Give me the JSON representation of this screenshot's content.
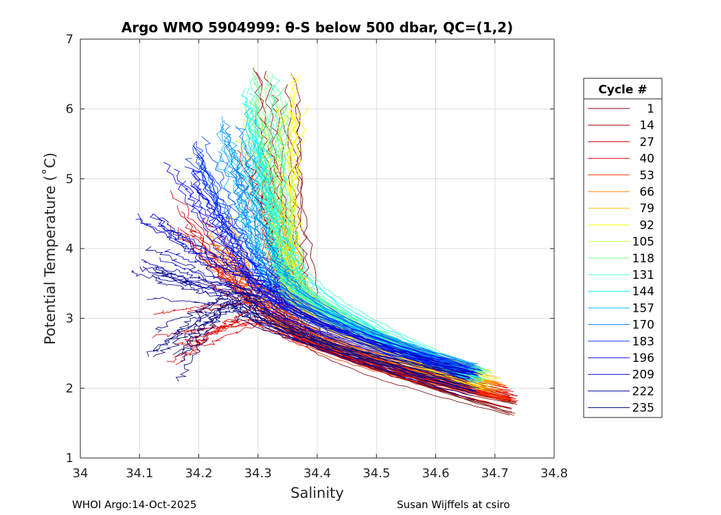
{
  "chart_data": {
    "type": "line",
    "title": "Argo WMO 5904999: θ-S below 500 dbar,  QC=(1,2)",
    "xlabel": "Salinity",
    "ylabel": "Potential Temperature (˚C)",
    "xlim": [
      34.0,
      34.8
    ],
    "ylim": [
      1,
      7
    ],
    "xticks": [
      34.0,
      34.1,
      34.2,
      34.3,
      34.4,
      34.5,
      34.6,
      34.7,
      34.8
    ],
    "xtick_labels": [
      "34",
      "34.1",
      "34.2",
      "34.3",
      "34.4",
      "34.5",
      "34.6",
      "34.7",
      "34.8"
    ],
    "yticks": [
      1,
      2,
      3,
      4,
      5,
      6,
      7
    ],
    "ytick_labels": [
      "1",
      "2",
      "3",
      "4",
      "5",
      "6",
      "7"
    ],
    "grid": true,
    "legend_title": "Cycle #",
    "legend_position": "right-outside",
    "series": [
      {
        "name": "1",
        "color": "#800000",
        "s_deep": 34.745,
        "t_deep": 1.6,
        "s_mid": 34.38,
        "t_mid": 2.9,
        "s_top": 34.33,
        "t_top": 6.6
      },
      {
        "name": "14",
        "color": "#a60000",
        "s_deep": 34.74,
        "t_deep": 1.7,
        "s_mid": 34.36,
        "t_mid": 2.95,
        "s_top": 34.3,
        "t_top": 5.8
      },
      {
        "name": "27",
        "color": "#cc0000",
        "s_deep": 34.74,
        "t_deep": 1.75,
        "s_mid": 34.33,
        "t_mid": 3.0,
        "s_top": 34.18,
        "t_top": 5.0
      },
      {
        "name": "40",
        "color": "#e60000",
        "s_deep": 34.735,
        "t_deep": 1.8,
        "s_mid": 34.32,
        "t_mid": 3.1,
        "s_top": 34.16,
        "t_top": 3.1
      },
      {
        "name": "53",
        "color": "#ff3300",
        "s_deep": 34.73,
        "t_deep": 1.8,
        "s_mid": 34.33,
        "t_mid": 3.05,
        "s_top": 34.22,
        "t_top": 4.2
      },
      {
        "name": "66",
        "color": "#ff8000",
        "s_deep": 34.72,
        "t_deep": 1.85,
        "s_mid": 34.34,
        "t_mid": 3.2,
        "s_top": 34.24,
        "t_top": 4.5
      },
      {
        "name": "79",
        "color": "#ffbf00",
        "s_deep": 34.71,
        "t_deep": 1.9,
        "s_mid": 34.37,
        "t_mid": 3.3,
        "s_top": 34.33,
        "t_top": 4.8
      },
      {
        "name": "92",
        "color": "#ffff00",
        "s_deep": 34.7,
        "t_deep": 1.95,
        "s_mid": 34.36,
        "t_mid": 3.5,
        "s_top": 34.36,
        "t_top": 6.6
      },
      {
        "name": "105",
        "color": "#bfff40",
        "s_deep": 34.7,
        "t_deep": 2.0,
        "s_mid": 34.36,
        "t_mid": 3.6,
        "s_top": 34.3,
        "t_top": 6.2
      },
      {
        "name": "118",
        "color": "#80ff80",
        "s_deep": 34.69,
        "t_deep": 2.0,
        "s_mid": 34.35,
        "t_mid": 3.7,
        "s_top": 34.32,
        "t_top": 6.6
      },
      {
        "name": "131",
        "color": "#40ffbf",
        "s_deep": 34.69,
        "t_deep": 2.05,
        "s_mid": 34.35,
        "t_mid": 3.8,
        "s_top": 34.31,
        "t_top": 6.5
      },
      {
        "name": "144",
        "color": "#00ffff",
        "s_deep": 34.68,
        "t_deep": 2.05,
        "s_mid": 34.34,
        "t_mid": 3.8,
        "s_top": 34.28,
        "t_top": 6.3
      },
      {
        "name": "157",
        "color": "#00bfff",
        "s_deep": 34.68,
        "t_deep": 2.1,
        "s_mid": 34.33,
        "t_mid": 3.75,
        "s_top": 34.26,
        "t_top": 6.1
      },
      {
        "name": "170",
        "color": "#0080ff",
        "s_deep": 34.68,
        "t_deep": 2.1,
        "s_mid": 34.32,
        "t_mid": 3.7,
        "s_top": 34.24,
        "t_top": 5.9
      },
      {
        "name": "183",
        "color": "#0040ff",
        "s_deep": 34.67,
        "t_deep": 2.1,
        "s_mid": 34.31,
        "t_mid": 3.6,
        "s_top": 34.2,
        "t_top": 5.7
      },
      {
        "name": "196",
        "color": "#0000ff",
        "s_deep": 34.67,
        "t_deep": 2.1,
        "s_mid": 34.3,
        "t_mid": 3.5,
        "s_top": 34.17,
        "t_top": 5.6
      },
      {
        "name": "209",
        "color": "#0000cc",
        "s_deep": 34.68,
        "t_deep": 2.1,
        "s_mid": 34.3,
        "t_mid": 3.4,
        "s_top": 34.12,
        "t_top": 4.6
      },
      {
        "name": "222",
        "color": "#000099",
        "s_deep": 34.68,
        "t_deep": 1.75,
        "s_mid": 34.28,
        "t_mid": 3.3,
        "s_top": 34.1,
        "t_top": 4.1
      },
      {
        "name": "235",
        "color": "#000080",
        "s_deep": 34.66,
        "t_deep": 2.0,
        "s_mid": 34.27,
        "t_mid": 3.2,
        "s_top": 34.15,
        "t_top": 2.85
      }
    ]
  },
  "footer": {
    "left": "WHOI Argo:14-Oct-2025",
    "right": "Susan Wijffels at csiro"
  }
}
